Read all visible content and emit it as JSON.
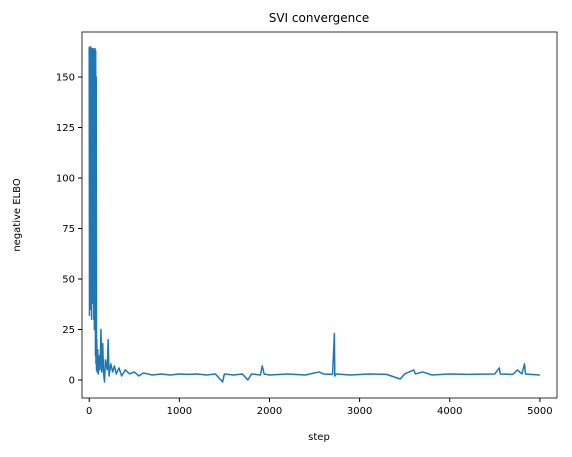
{
  "chart_data": {
    "type": "line",
    "title": "SVI convergence",
    "x_label": "step",
    "y_label": "negative ELBO",
    "x": [
      0,
      3,
      6,
      9,
      12,
      15,
      18,
      21,
      24,
      27,
      30,
      33,
      36,
      39,
      42,
      45,
      48,
      51,
      54,
      57,
      60,
      63,
      66,
      69,
      72,
      75,
      78,
      81,
      84,
      88,
      95,
      100,
      110,
      120,
      130,
      140,
      150,
      160,
      170,
      180,
      200,
      210,
      220,
      240,
      260,
      280,
      300,
      330,
      360,
      400,
      450,
      500,
      550,
      600,
      700,
      800,
      900,
      1000,
      1100,
      1200,
      1300,
      1400,
      1480,
      1500,
      1600,
      1700,
      1760,
      1800,
      1900,
      1920,
      1940,
      2000,
      2200,
      2400,
      2550,
      2600,
      2700,
      2720,
      2725,
      2740,
      2900,
      3100,
      3300,
      3450,
      3500,
      3600,
      3620,
      3700,
      3800,
      4000,
      4200,
      4500,
      4550,
      4560,
      4700,
      4750,
      4800,
      4830,
      4840,
      5000
    ],
    "series": [
      {
        "name": "negative ELBO",
        "color": "#1f77b4",
        "values": [
          165,
          32,
          164,
          40,
          163,
          35,
          165,
          50,
          164,
          30,
          163,
          45,
          164,
          38,
          163,
          60,
          164,
          30,
          160,
          25,
          163,
          40,
          164,
          12,
          163,
          8,
          150,
          5,
          20,
          4,
          15,
          3,
          12,
          5,
          25,
          4,
          18,
          3,
          -1,
          10,
          5,
          20,
          2,
          8,
          4,
          7,
          3,
          6,
          2,
          5,
          3,
          4,
          2,
          3.5,
          2.5,
          3,
          2.5,
          3,
          2.8,
          3,
          2.5,
          3,
          -1,
          3,
          2.5,
          3,
          0,
          3,
          2.5,
          7,
          3,
          2.5,
          3,
          2.5,
          4,
          3,
          2.8,
          23,
          2,
          3,
          2.5,
          3,
          2.8,
          0.5,
          3,
          5,
          3,
          4,
          2.5,
          3,
          2.8,
          3,
          6,
          3,
          2.8,
          5,
          3,
          8,
          3,
          2.5
        ]
      }
    ],
    "xlim": [
      -80,
      5190
    ],
    "ylim": [
      -8.9,
      172.3
    ],
    "xticks": [
      0,
      1000,
      2000,
      3000,
      4000,
      5000
    ],
    "yticks": [
      0,
      25,
      50,
      75,
      100,
      125,
      150
    ]
  }
}
